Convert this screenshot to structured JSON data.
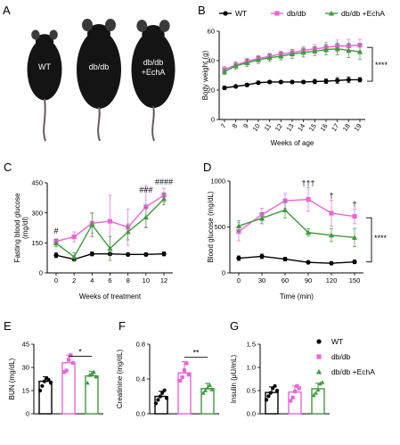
{
  "colors": {
    "wt": "#000000",
    "db": "#e866d8",
    "echa": "#3f9a3f",
    "mouse": "#141414"
  },
  "panel_a": {
    "letter": "A",
    "mice": [
      {
        "label": "WT",
        "size": 0.78
      },
      {
        "label": "db/db",
        "size": 1.0
      },
      {
        "label": "db/db\n+EchA",
        "size": 0.98
      }
    ]
  },
  "chart_data": [
    {
      "id": "B",
      "letter": "B",
      "type": "line",
      "xlabel": "Weeks of age",
      "ylabel": "Body weight (g)",
      "x": [
        7,
        8,
        9,
        10,
        11,
        12,
        13,
        14,
        15,
        16,
        17,
        18,
        19
      ],
      "xticks": [
        "7",
        "8",
        "9",
        "10",
        "11",
        "12",
        "13",
        "14",
        "15",
        "16",
        "17",
        "18",
        "19"
      ],
      "ylim": [
        0,
        60
      ],
      "yticks": [
        0,
        20,
        40,
        60
      ],
      "legend": [
        "WT",
        "db/db",
        "db/db +EchA"
      ],
      "legend_position": "top",
      "series": [
        {
          "name": "WT",
          "values": [
            21.5,
            22.5,
            23.5,
            25,
            25.5,
            25.5,
            25.5,
            25.5,
            25.8,
            26,
            26.5,
            27,
            27
          ],
          "err": [
            1.2,
            1,
            1,
            1,
            1,
            1,
            1,
            1,
            1.5,
            1.5,
            2,
            2,
            1.5
          ],
          "color": "#000000",
          "marker": "circle"
        },
        {
          "name": "db/db",
          "values": [
            34,
            37,
            39.5,
            41.5,
            43,
            44.5,
            45.5,
            47,
            48,
            49,
            50,
            50,
            50.5
          ],
          "err": [
            2,
            2,
            2,
            2,
            2,
            2,
            2,
            2.5,
            3,
            3.5,
            4,
            4.5,
            4
          ],
          "color": "#e866d8",
          "marker": "square"
        },
        {
          "name": "db/db +EchA",
          "values": [
            32.5,
            36.5,
            38.5,
            40.5,
            42,
            43,
            44.5,
            45.5,
            46.5,
            47.5,
            48,
            47,
            46
          ],
          "err": [
            2,
            2.5,
            2.5,
            2.5,
            2.5,
            2.5,
            3,
            3,
            3,
            3.5,
            4,
            5,
            5
          ],
          "color": "#3f9a3f",
          "marker": "triangle"
        }
      ],
      "annotations": [
        {
          "text": "****",
          "x": 19,
          "y": 37
        }
      ]
    },
    {
      "id": "C",
      "letter": "C",
      "type": "line",
      "xlabel": "Weeks of treatment",
      "ylabel": "Fasting blood glucose (mg/dL)",
      "ylabel_lines": [
        "Fasting blood glucose",
        "(mg/dl)"
      ],
      "x": [
        0,
        2,
        4,
        6,
        8,
        10,
        12
      ],
      "xticks": [
        "0",
        "2",
        "4",
        "6",
        "8",
        "10",
        "12"
      ],
      "ylim": [
        0,
        450
      ],
      "yticks": [
        0,
        150,
        300,
        450
      ],
      "series": [
        {
          "name": "WT",
          "values": [
            88,
            68,
            95,
            95,
            92,
            92,
            95
          ],
          "err": [
            12,
            8,
            10,
            8,
            8,
            8,
            10
          ],
          "color": "#000000",
          "marker": "circle"
        },
        {
          "name": "db/db",
          "values": [
            158,
            180,
            248,
            258,
            228,
            330,
            388
          ],
          "err": [
            12,
            25,
            50,
            130,
            90,
            105,
            35
          ],
          "color": "#e866d8",
          "marker": "square"
        },
        {
          "name": "db/db +EchA",
          "values": [
            148,
            80,
            240,
            122,
            205,
            278,
            370
          ],
          "err": [
            18,
            20,
            60,
            60,
            40,
            50,
            30
          ],
          "color": "#3f9a3f",
          "marker": "triangle"
        }
      ],
      "annotations": [
        {
          "text": "#",
          "x": 0,
          "y": 195
        },
        {
          "text": "###",
          "x": 10,
          "y": 400
        },
        {
          "text": "####",
          "x": 12,
          "y": 442
        }
      ]
    },
    {
      "id": "D",
      "letter": "D",
      "type": "line",
      "xlabel": "Time (min)",
      "ylabel": "Blood glucose (mg/dL)",
      "x": [
        0,
        30,
        60,
        90,
        120,
        150
      ],
      "xticks": [
        "0",
        "30",
        "60",
        "90",
        "120",
        "150"
      ],
      "ylim": [
        0,
        1000
      ],
      "yticks": [
        0,
        500,
        1000
      ],
      "series": [
        {
          "name": "WT",
          "values": [
            160,
            180,
            150,
            115,
            105,
            120
          ],
          "err": [
            25,
            25,
            20,
            15,
            15,
            20
          ],
          "color": "#000000",
          "marker": "circle"
        },
        {
          "name": "db/db",
          "values": [
            450,
            635,
            785,
            800,
            650,
            615
          ],
          "err": [
            100,
            70,
            80,
            130,
            140,
            80
          ],
          "color": "#e866d8",
          "marker": "square"
        },
        {
          "name": "db/db +EchA",
          "values": [
            510,
            595,
            685,
            440,
            410,
            385
          ],
          "err": [
            60,
            60,
            90,
            40,
            70,
            100
          ],
          "color": "#3f9a3f",
          "marker": "triangle"
        }
      ],
      "annotations": [
        {
          "text": "†††",
          "x": 90,
          "y": 945
        },
        {
          "text": "†",
          "x": 120,
          "y": 810
        },
        {
          "text": "†",
          "x": 150,
          "y": 720
        },
        {
          "text": "****",
          "x": 150,
          "y": 380
        }
      ]
    },
    {
      "id": "E",
      "letter": "E",
      "type": "bar",
      "ylabel": "BUN (mg/dL)",
      "categories": [
        "WT",
        "db/db",
        "db/db +EchA"
      ],
      "ylim": [
        0,
        45
      ],
      "yticks": [
        0,
        15,
        30,
        45
      ],
      "values": [
        21,
        33,
        24.5
      ],
      "err": [
        3,
        5,
        3
      ],
      "points": [
        [
          15,
          18,
          21,
          23,
          22,
          20
        ],
        [
          27,
          28,
          35,
          38,
          33
        ],
        [
          20,
          25,
          26,
          27,
          24
        ]
      ],
      "annotations": [
        {
          "text": "*",
          "between": [
            1,
            2
          ],
          "y": 39
        }
      ]
    },
    {
      "id": "F",
      "letter": "F",
      "type": "bar",
      "ylabel": "Creatinine (mg/dL)",
      "categories": [
        "WT",
        "db/db",
        "db/db +EchA"
      ],
      "ylim": [
        0,
        0.8
      ],
      "yticks": [
        0,
        0.4,
        0.8
      ],
      "ytick_labels": [
        "0.0",
        "0.4",
        "0.8"
      ],
      "values": [
        0.2,
        0.47,
        0.29
      ],
      "err": [
        0.06,
        0.13,
        0.06
      ],
      "points": [
        [
          0.12,
          0.16,
          0.2,
          0.24,
          0.27,
          0.18
        ],
        [
          0.38,
          0.42,
          0.5,
          0.58,
          0.45
        ],
        [
          0.24,
          0.27,
          0.3,
          0.33,
          0.28
        ]
      ],
      "annotations": [
        {
          "text": "**",
          "between": [
            1,
            2
          ],
          "y": 0.68
        }
      ]
    },
    {
      "id": "G",
      "letter": "G",
      "type": "bar",
      "ylabel": "Insulin (μU/mL)",
      "categories": [
        "WT",
        "db/db",
        "db/db +EchA"
      ],
      "ylim": [
        0,
        1.5
      ],
      "yticks": [
        0,
        0.5,
        1,
        1.5
      ],
      "ytick_labels": [
        "0.0",
        "0.5",
        "1.0",
        "1.5"
      ],
      "values": [
        0.46,
        0.47,
        0.54
      ],
      "err": [
        0.12,
        0.13,
        0.12
      ],
      "points": [
        [
          0.3,
          0.38,
          0.45,
          0.55,
          0.6,
          0.5
        ],
        [
          0.28,
          0.35,
          0.48,
          0.6,
          0.55
        ],
        [
          0.4,
          0.45,
          0.52,
          0.65,
          0.68
        ]
      ]
    }
  ],
  "bar_legend": [
    "WT",
    "db/db",
    "db/db +EchA"
  ]
}
